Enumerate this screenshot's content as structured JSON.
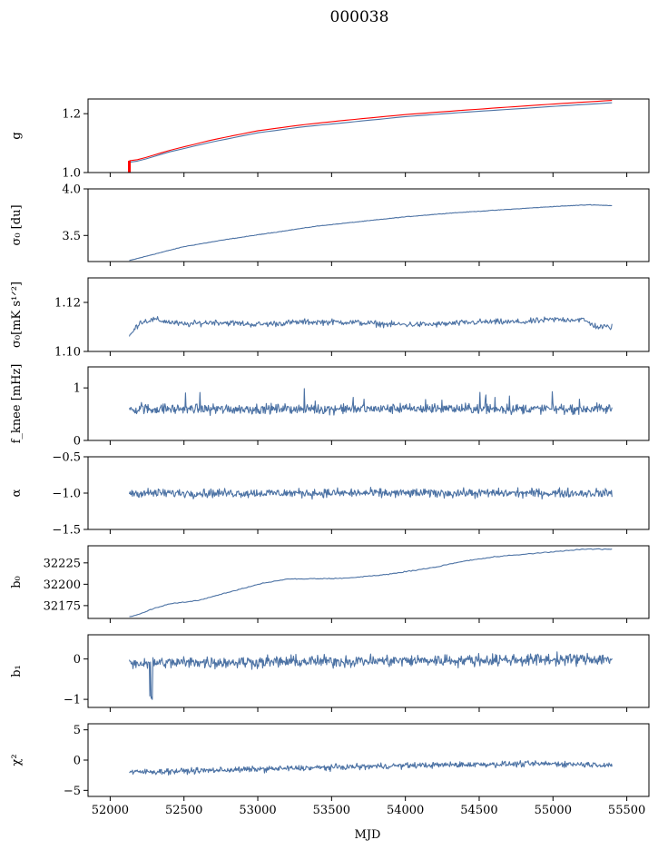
{
  "figure": {
    "title": "000038",
    "xlabel": "MJD"
  },
  "colors": {
    "series": "#4c72a4",
    "fit": "#ff0000"
  },
  "chart_data": [
    {
      "type": "line",
      "panel": "g",
      "ylabel": "g",
      "ylim": [
        1.0,
        1.25
      ],
      "yticks": [
        1.0,
        1.2
      ],
      "ytick_labels": [
        "1.0",
        "1.2"
      ],
      "xlim": [
        51850,
        55650
      ],
      "xticks": [
        52000,
        52500,
        53000,
        53500,
        54000,
        54500,
        55000,
        55500
      ],
      "series": [
        {
          "x": [
            52130,
            52200,
            52400,
            52700,
            53000,
            53300,
            53600,
            54000,
            54400,
            54800,
            55100,
            55400
          ],
          "values": [
            1.035,
            1.04,
            1.07,
            1.105,
            1.135,
            1.155,
            1.17,
            1.19,
            1.205,
            1.218,
            1.228,
            1.237
          ]
        },
        {
          "x": [
            52130,
            52200,
            52400,
            52700,
            53000,
            53300,
            53600,
            54000,
            54400,
            54800,
            55100,
            55400
          ],
          "values": [
            1.04,
            1.045,
            1.075,
            1.112,
            1.142,
            1.162,
            1.178,
            1.197,
            1.212,
            1.226,
            1.236,
            1.245
          ],
          "color_key": "fit"
        }
      ]
    },
    {
      "type": "line",
      "panel": "sigma0_du",
      "ylabel": "σ₀ [du]",
      "ylim": [
        3.22,
        4.0
      ],
      "yticks": [
        3.5,
        4.0
      ],
      "ytick_labels": [
        "3.5",
        "4.0"
      ],
      "series": [
        {
          "x": [
            52130,
            52300,
            52500,
            52800,
            53100,
            53400,
            53700,
            54000,
            54300,
            54700,
            55000,
            55250,
            55400
          ],
          "values": [
            3.23,
            3.3,
            3.38,
            3.46,
            3.53,
            3.6,
            3.65,
            3.7,
            3.74,
            3.78,
            3.81,
            3.83,
            3.82
          ]
        }
      ]
    },
    {
      "type": "line",
      "panel": "sigma0_mK",
      "ylabel": "σ₀[mK s¹ᐟ²]",
      "ylim": [
        1.1,
        1.13
      ],
      "yticks": [
        1.1,
        1.12
      ],
      "ytick_labels": [
        "1.10",
        "1.12"
      ],
      "series": [
        {
          "x": [
            52130,
            52200,
            52300,
            52500,
            52700,
            53000,
            53300,
            53600,
            53900,
            54200,
            54500,
            54800,
            55000,
            55200,
            55300,
            55400
          ],
          "values": [
            1.106,
            1.112,
            1.113,
            1.111,
            1.112,
            1.111,
            1.112,
            1.112,
            1.111,
            1.111,
            1.112,
            1.112,
            1.113,
            1.113,
            1.11,
            1.11
          ]
        }
      ]
    },
    {
      "type": "line",
      "panel": "fknee",
      "ylabel": "f_knee [mHz]",
      "ylim": [
        0,
        1.4
      ],
      "yticks": [
        0,
        1
      ],
      "ytick_labels": [
        "0",
        "1"
      ],
      "series": [
        {
          "x": [
            52130,
            55400
          ],
          "values": [
            0.6,
            0.6
          ]
        }
      ]
    },
    {
      "type": "line",
      "panel": "alpha",
      "ylabel": "α",
      "ylim": [
        -1.5,
        -0.5
      ],
      "yticks": [
        -1.5,
        -1.0,
        -0.5
      ],
      "ytick_labels": [
        "−1.5",
        "−1.0",
        "−0.5"
      ],
      "series": [
        {
          "x": [
            52130,
            55400
          ],
          "values": [
            -1.0,
            -1.0
          ]
        }
      ]
    },
    {
      "type": "line",
      "panel": "b0",
      "ylabel": "b₀",
      "ylim": [
        32160,
        32245
      ],
      "yticks": [
        32175,
        32200,
        32225
      ],
      "ytick_labels": [
        "32175",
        "32200",
        "32225"
      ],
      "series": [
        {
          "x": [
            52130,
            52200,
            52300,
            52400,
            52600,
            52700,
            52900,
            53000,
            53200,
            53600,
            53900,
            54200,
            54400,
            54600,
            54800,
            55000,
            55200,
            55400
          ],
          "values": [
            32162,
            32165,
            32172,
            32177,
            32181,
            32186,
            32195,
            32200,
            32206,
            32207,
            32212,
            32220,
            32227,
            32232,
            32235,
            32238,
            32241,
            32241
          ]
        }
      ]
    },
    {
      "type": "line",
      "panel": "b1",
      "ylabel": "b₁",
      "ylim": [
        -1.2,
        0.6
      ],
      "yticks": [
        -1,
        0
      ],
      "ytick_labels": [
        "−1",
        "0"
      ],
      "series": [
        {
          "x": [
            52130,
            55400
          ],
          "values": [
            -0.1,
            0.0
          ]
        }
      ]
    },
    {
      "type": "line",
      "panel": "chi2",
      "ylabel": "χ²",
      "ylim": [
        -6,
        6
      ],
      "yticks": [
        -5,
        0,
        5
      ],
      "ytick_labels": [
        "−5",
        "0",
        "5"
      ],
      "series": [
        {
          "x": [
            52130,
            52500,
            53000,
            53500,
            54000,
            54500,
            55000,
            55400
          ],
          "values": [
            -2.0,
            -1.8,
            -1.5,
            -1.2,
            -0.9,
            -0.7,
            -0.6,
            -0.8
          ]
        }
      ]
    }
  ],
  "x_axis": {
    "tick_labels": [
      "52000",
      "52500",
      "53000",
      "53500",
      "54000",
      "54500",
      "55000",
      "55500"
    ]
  }
}
